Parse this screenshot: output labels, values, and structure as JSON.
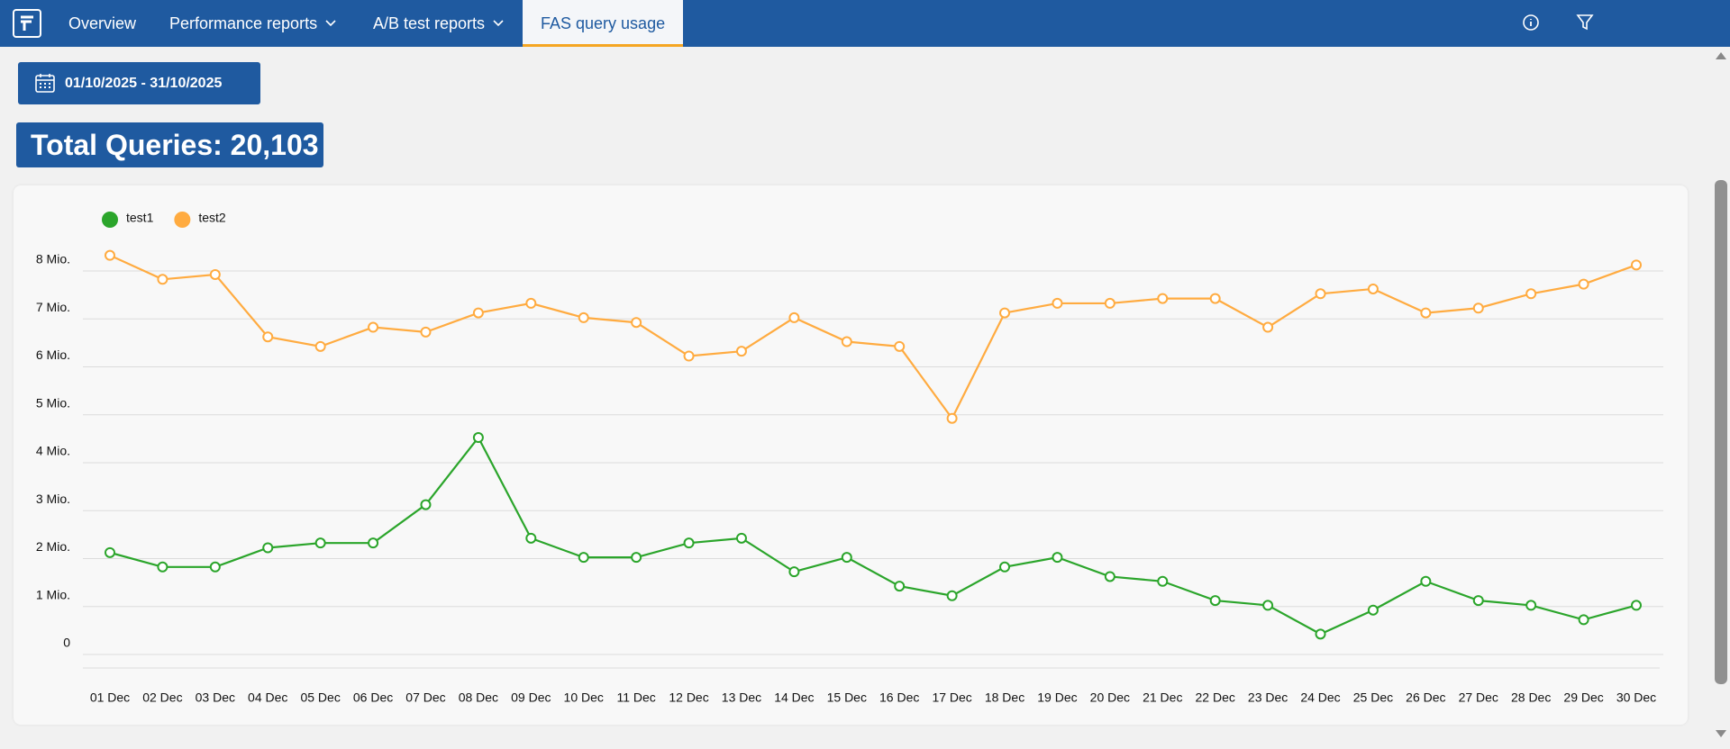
{
  "nav": {
    "items": [
      "Overview",
      "Performance reports",
      "A/B test reports",
      "FAS query usage"
    ]
  },
  "date_range": "01/10/2025 - 31/10/2025",
  "total": "Total Queries: 20,103",
  "chart_data": {
    "type": "line",
    "categories": [
      "01 Dec",
      "02 Dec",
      "03 Dec",
      "04 Dec",
      "05 Dec",
      "06 Dec",
      "07 Dec",
      "08 Dec",
      "09 Dec",
      "10 Dec",
      "11 Dec",
      "12 Dec",
      "13 Dec",
      "14 Dec",
      "15 Dec",
      "16 Dec",
      "17 Dec",
      "18 Dec",
      "19 Dec",
      "20 Dec",
      "21 Dec",
      "22 Dec",
      "23 Dec",
      "24 Dec",
      "25 Dec",
      "26 Dec",
      "27 Dec",
      "28 Dec",
      "29 Dec",
      "30 Dec"
    ],
    "series": [
      {
        "name": "test1",
        "color": "#2ba52b",
        "values": [
          1.9,
          1.6,
          1.6,
          2.0,
          2.1,
          2.1,
          2.9,
          4.3,
          2.2,
          1.8,
          1.8,
          2.1,
          2.2,
          1.5,
          1.8,
          1.2,
          1.0,
          1.6,
          1.8,
          1.4,
          1.3,
          0.9,
          0.8,
          0.2,
          0.7,
          1.3,
          0.9,
          0.8,
          0.5,
          0.8
        ]
      },
      {
        "name": "test2",
        "color": "#ffab40",
        "values": [
          8.1,
          7.6,
          7.7,
          6.4,
          6.2,
          6.6,
          6.5,
          6.9,
          7.1,
          6.8,
          6.7,
          6.0,
          6.1,
          6.8,
          6.3,
          6.2,
          4.7,
          6.9,
          7.1,
          7.1,
          7.2,
          7.2,
          6.6,
          7.3,
          7.4,
          6.9,
          7.0,
          7.3,
          7.5,
          7.9
        ]
      }
    ],
    "ylim": [
      0,
      8
    ],
    "yticks": [
      0,
      {
        "value": 1,
        "label": "1 Mio."
      },
      {
        "value": 2,
        "label": "2 Mio."
      },
      {
        "value": 3,
        "label": "3 Mio."
      },
      {
        "value": 4,
        "label": "4 Mio."
      },
      {
        "value": 5,
        "label": "5 Mio."
      },
      {
        "value": 6,
        "label": "6 Mio."
      },
      {
        "value": 7,
        "label": "7 Mio."
      },
      {
        "value": 8,
        "label": "8 Mio."
      }
    ],
    "grid": true
  }
}
